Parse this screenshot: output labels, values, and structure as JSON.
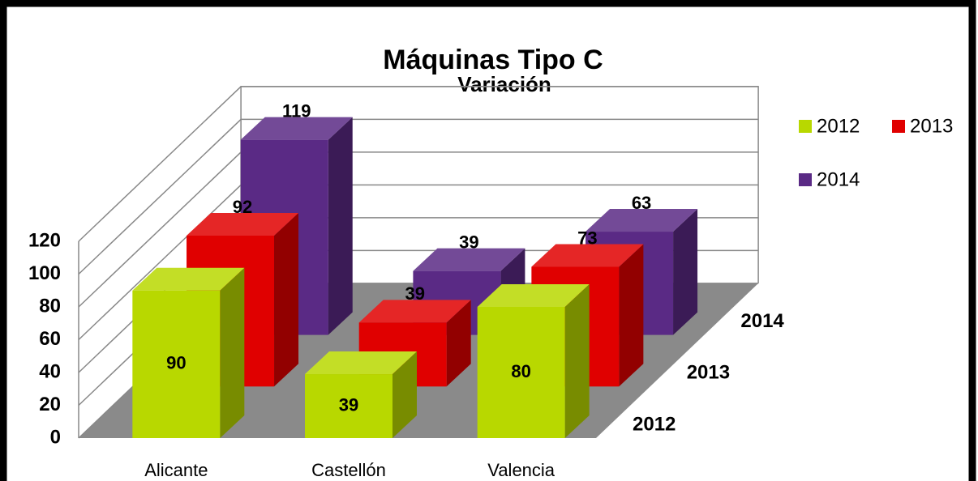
{
  "chart_data": {
    "type": "bar3d",
    "title": "Máquinas Tipo C",
    "subtitle": "Variación",
    "categories": [
      "Alicante",
      "Castellón",
      "Valencia"
    ],
    "series": [
      {
        "name": "2012",
        "color": "#b8d800",
        "values": [
          90,
          39,
          80
        ]
      },
      {
        "name": "2013",
        "color": "#e00000",
        "values": [
          92,
          39,
          73
        ]
      },
      {
        "name": "2014",
        "color": "#5a2a85",
        "values": [
          119,
          39,
          63
        ]
      }
    ],
    "ylim": [
      0,
      120
    ],
    "yticks": [
      0,
      20,
      40,
      60,
      80,
      100,
      120
    ],
    "grid": true,
    "legend": "right"
  }
}
